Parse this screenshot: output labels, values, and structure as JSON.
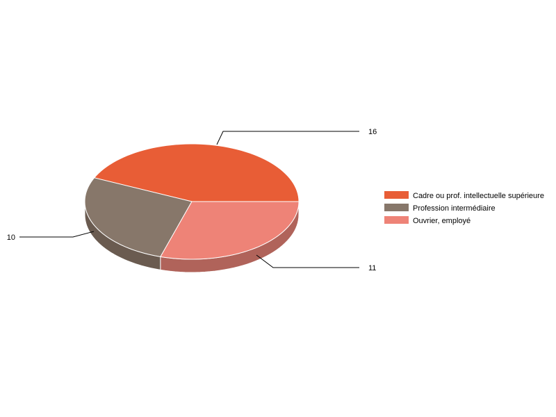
{
  "chart_data": {
    "type": "pie",
    "style": "3d",
    "categories": [
      "Cadre ou prof. intellectuelle supérieure",
      "Profession intermédiaire",
      "Ouvrier, employé"
    ],
    "values": [
      16,
      10,
      11
    ],
    "colors": [
      "#e85d36",
      "#87776a",
      "#ee8377"
    ],
    "side_colors": [
      "#b5482a",
      "#6a5b50",
      "#b0635a"
    ],
    "data_labels": [
      "16",
      "10",
      "11"
    ],
    "legend": {
      "position": "right"
    }
  }
}
